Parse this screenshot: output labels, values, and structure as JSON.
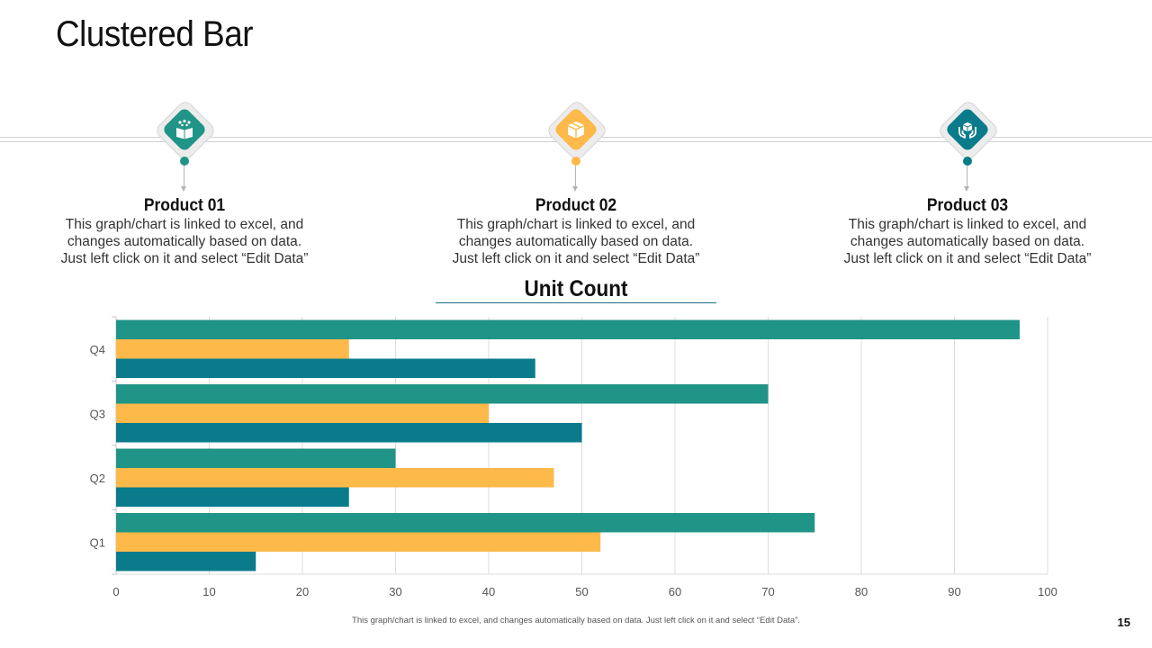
{
  "slide": {
    "title": "Clustered Bar",
    "page_number": "15",
    "footnote": "This graph/chart is linked to excel, and changes automatically based on data. Just left click on it and select “Edit Data”."
  },
  "products": [
    {
      "title": "Product 01",
      "icon": "gift-box-icon",
      "color": "#209486",
      "desc_lines": [
        "This graph/chart is linked to excel, and",
        "changes automatically based on data.",
        "Just left click on it and select “Edit Data”"
      ]
    },
    {
      "title": "Product 02",
      "icon": "package-box-icon",
      "color": "#FDB94A",
      "desc_lines": [
        "This graph/chart is linked to excel, and",
        "changes automatically based on data.",
        "Just left click on it and select “Edit Data”"
      ]
    },
    {
      "title": "Product 03",
      "icon": "hands-box-icon",
      "color": "#0A7B8B",
      "desc_lines": [
        "This graph/chart is linked to excel, and",
        "changes automatically based on data.",
        "Just left click on it and select “Edit Data”"
      ]
    }
  ],
  "chart_data": {
    "type": "bar",
    "orientation": "horizontal",
    "title": "Unit Count",
    "categories": [
      "Q1",
      "Q2",
      "Q3",
      "Q4"
    ],
    "series": [
      {
        "name": "Product 01",
        "color": "#209486",
        "values": [
          75,
          30,
          70,
          97
        ]
      },
      {
        "name": "Product 02",
        "color": "#FDB94A",
        "values": [
          52,
          47,
          40,
          25
        ]
      },
      {
        "name": "Product 03",
        "color": "#0A7B8B",
        "values": [
          15,
          25,
          50,
          45
        ]
      }
    ],
    "xlim": [
      0,
      100
    ],
    "xticks": [
      0,
      10,
      20,
      30,
      40,
      50,
      60,
      70,
      80,
      90,
      100
    ],
    "grid": true,
    "legend": "none"
  }
}
